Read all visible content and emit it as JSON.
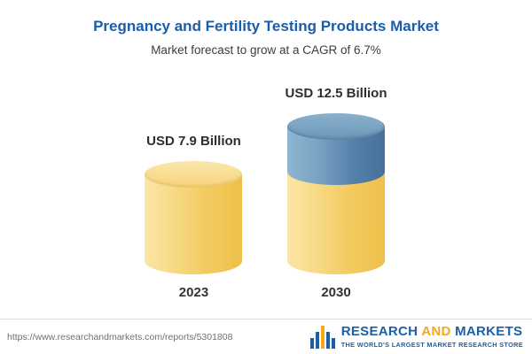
{
  "header": {
    "title": "Pregnancy and Fertility Testing Products Market",
    "subtitle": "Market forecast to grow at a CAGR of 6.7%"
  },
  "chart_data": {
    "type": "bar",
    "title": "Pregnancy and Fertility Testing Products Market",
    "subtitle": "Market forecast to grow at a CAGR of 6.7%",
    "categories": [
      "2023",
      "2030"
    ],
    "values": [
      7.9,
      12.5
    ],
    "value_labels": [
      "USD 7.9 Billion",
      "USD 12.5 Billion"
    ],
    "unit": "USD Billion",
    "cagr_percent": 6.7,
    "xlabel": "",
    "ylabel": "",
    "legend": "none",
    "grid": false,
    "bar_style": "cylinder",
    "bar_colors": [
      "#f3cc63",
      "#537fa8 over #f3cc63"
    ]
  },
  "bars": [
    {
      "year": "2023",
      "value": 7.9,
      "label": "USD 7.9 Billion"
    },
    {
      "year": "2030",
      "value": 12.5,
      "label": "USD 12.5 Billion"
    }
  ],
  "footer": {
    "url": "https://www.researchandmarkets.com/reports/5301808",
    "logo": {
      "research": "RESEARCH",
      "and": "AND",
      "markets": "MARKETS",
      "tagline": "THE WORLD'S LARGEST MARKET RESEARCH STORE"
    }
  },
  "colors": {
    "title_blue": "#1a5dab",
    "bar_yellow": "#f3cc63",
    "bar_blue": "#537fa8",
    "logo_blue": "#1d5fa8",
    "logo_orange": "#f5a81c"
  }
}
